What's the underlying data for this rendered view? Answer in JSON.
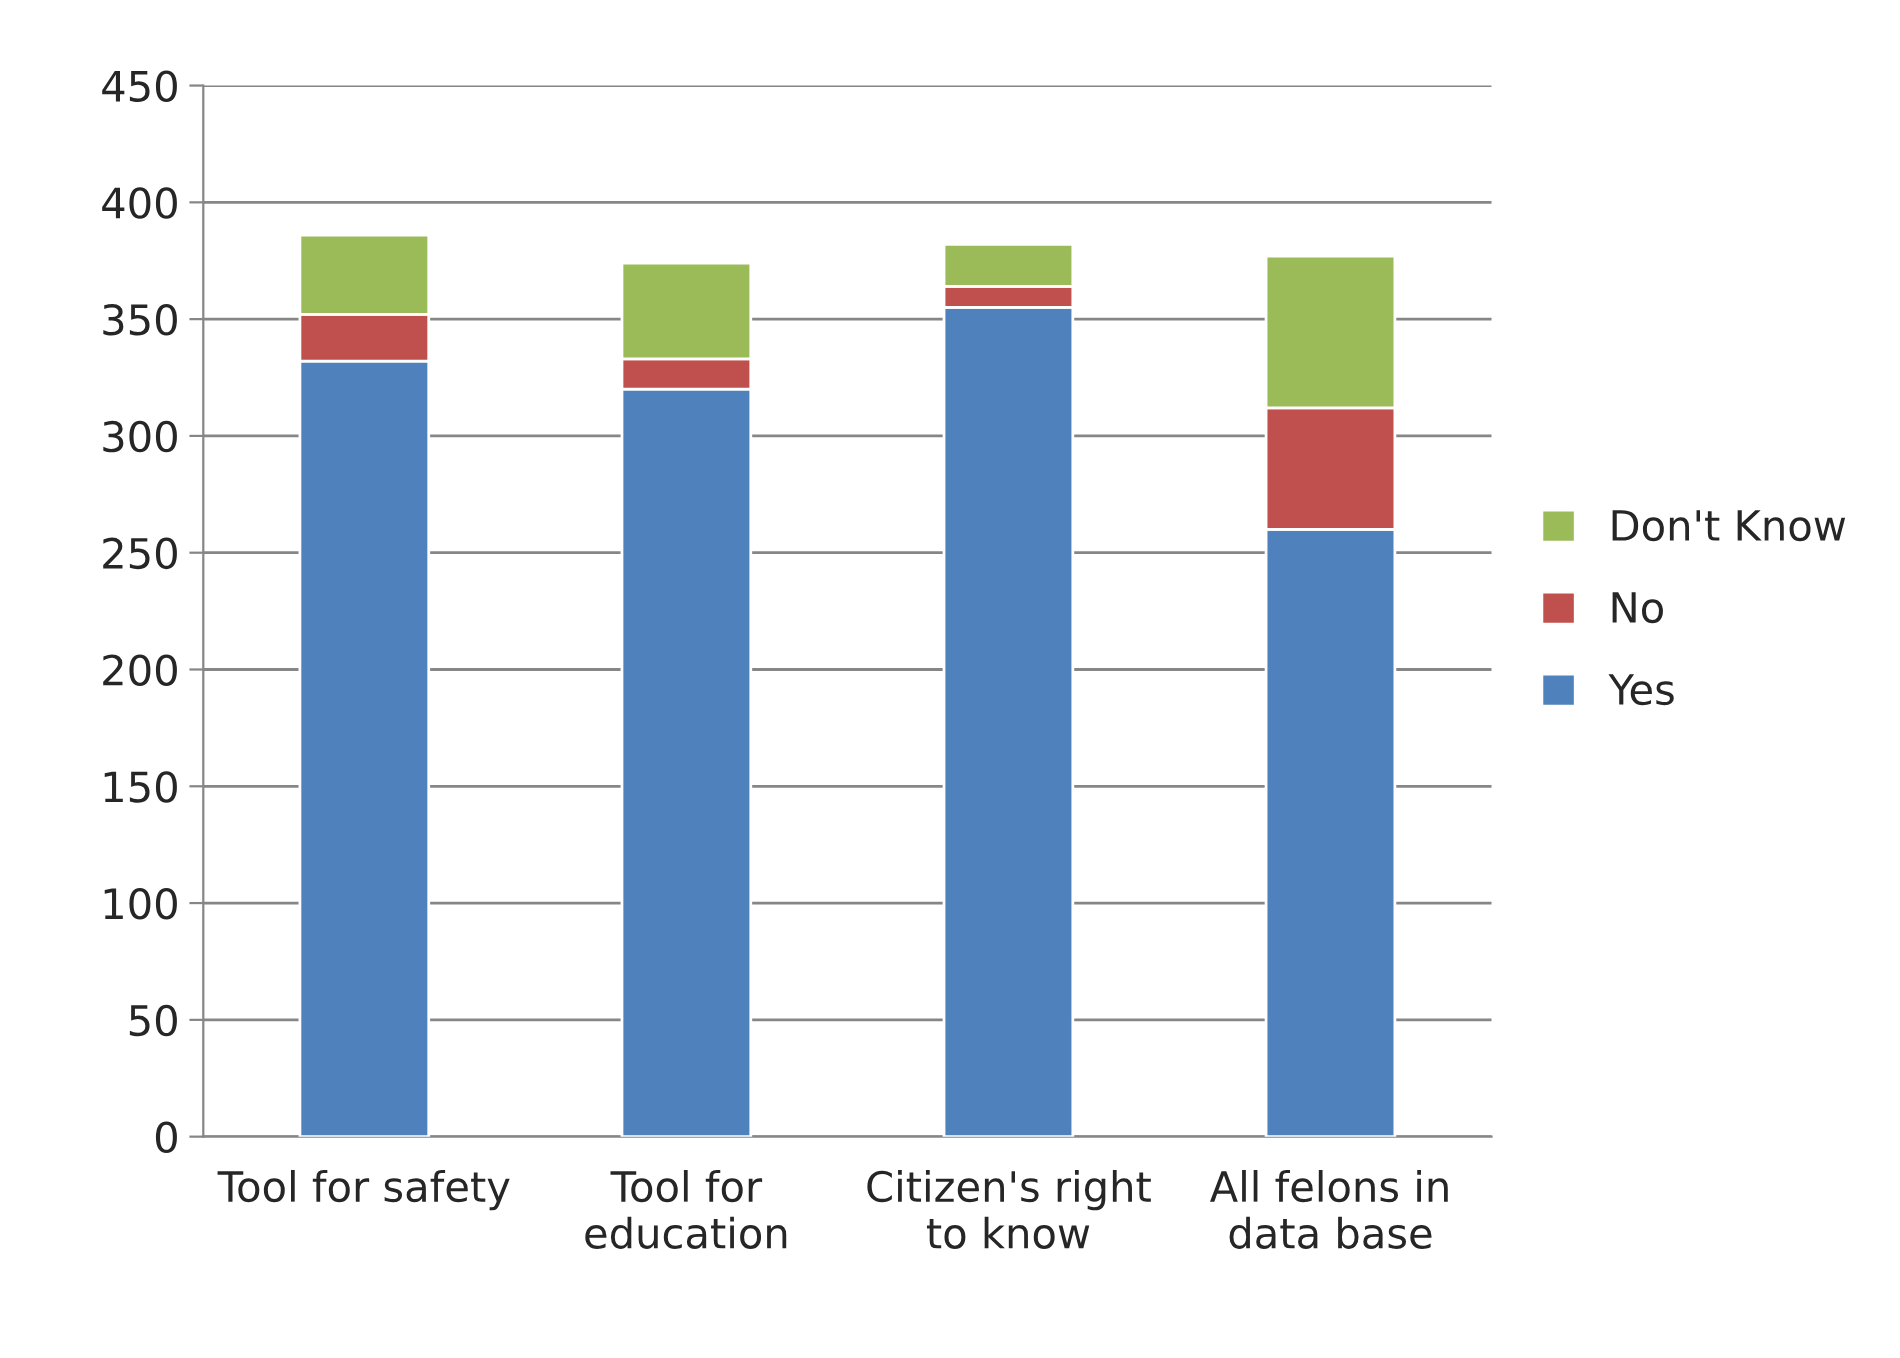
{
  "chart_data": {
    "type": "bar",
    "stacked": true,
    "categories": [
      "Tool for safety",
      "Tool for\neducation",
      "Citizen's right\nto know",
      "All felons in\ndata base"
    ],
    "series": [
      {
        "name": "Yes",
        "color": "#4f81bd",
        "values": [
          332,
          320,
          355,
          260
        ]
      },
      {
        "name": "No",
        "color": "#c0504d",
        "values": [
          20,
          13,
          9,
          52
        ]
      },
      {
        "name": "Don't Know",
        "color": "#9bbb59",
        "values": [
          34,
          41,
          18,
          65
        ]
      }
    ],
    "ylim": [
      0,
      450
    ],
    "yticks": [
      0,
      50,
      100,
      150,
      200,
      250,
      300,
      350,
      400,
      450
    ],
    "grid": "y",
    "legend": "right"
  }
}
